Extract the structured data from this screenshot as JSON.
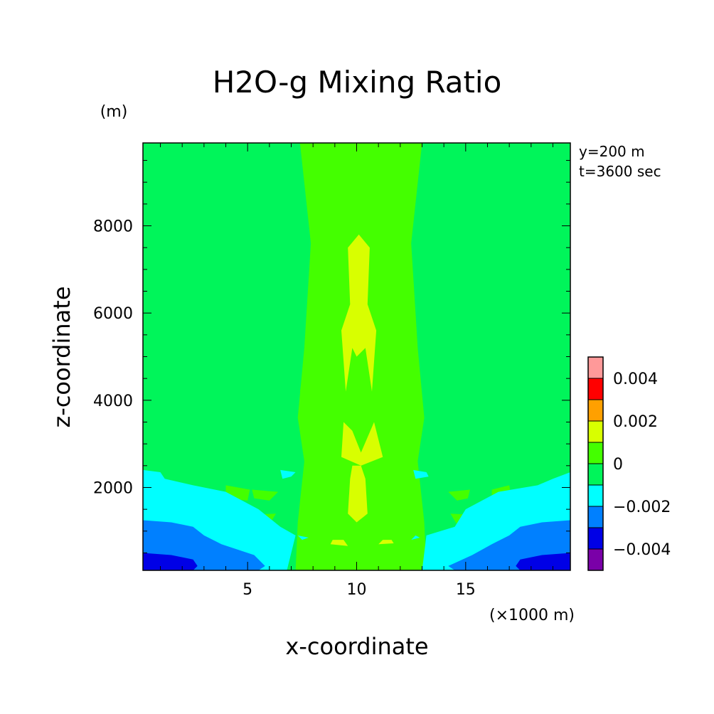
{
  "chart_data": {
    "type": "heatmap",
    "title": "H2O-g Mixing Ratio",
    "xlabel": "x-coordinate",
    "ylabel": "z-coordinate",
    "x_unit": "(×1000 m)",
    "y_unit": "(m)",
    "annotations": [
      "y=200 m",
      "t=3600 sec"
    ],
    "xlim": [
      0.2,
      19.8
    ],
    "ylim": [
      100,
      9900
    ],
    "x_ticks": [
      5,
      10,
      15
    ],
    "y_ticks": [
      2000,
      4000,
      6000,
      8000
    ],
    "colorbar": {
      "levels": [
        {
          "lo": -0.005,
          "hi": -0.004,
          "color": "#7a00a8"
        },
        {
          "lo": -0.004,
          "hi": -0.003,
          "color": "#0000e6"
        },
        {
          "lo": -0.003,
          "hi": -0.002,
          "color": "#0080ff"
        },
        {
          "lo": -0.002,
          "hi": -0.001,
          "color": "#00ffff"
        },
        {
          "lo": -0.001,
          "hi": 0.0,
          "color": "#00f55a"
        },
        {
          "lo": 0.0,
          "hi": 0.001,
          "color": "#44ff00"
        },
        {
          "lo": 0.001,
          "hi": 0.002,
          "color": "#d8ff00"
        },
        {
          "lo": 0.002,
          "hi": 0.003,
          "color": "#ffa000"
        },
        {
          "lo": 0.003,
          "hi": 0.004,
          "color": "#ff0000"
        },
        {
          "lo": 0.004,
          "hi": 0.005,
          "color": "#ff9999"
        }
      ],
      "tick_labels": [
        "0.004",
        "0.002",
        "0",
        "−0.002",
        "−0.004"
      ],
      "tick_values": [
        0.004,
        0.002,
        0.0,
        -0.002,
        -0.004
      ]
    },
    "regions": [
      {
        "level": 5,
        "points": [
          [
            7.2,
            100
          ],
          [
            7.3,
            1200
          ],
          [
            7.6,
            2600
          ],
          [
            7.3,
            3600
          ],
          [
            7.6,
            5200
          ],
          [
            7.9,
            7600
          ],
          [
            7.4,
            9900
          ],
          [
            13.0,
            9900
          ],
          [
            12.5,
            7600
          ],
          [
            12.8,
            5200
          ],
          [
            13.1,
            3600
          ],
          [
            12.8,
            2600
          ],
          [
            13.1,
            1200
          ],
          [
            13.2,
            100
          ]
        ]
      },
      {
        "level": 5,
        "points": [
          [
            4.0,
            2050
          ],
          [
            5.1,
            1950
          ],
          [
            5.0,
            1700
          ],
          [
            4.0,
            1750
          ]
        ]
      },
      {
        "level": 5,
        "points": [
          [
            16.2,
            1950
          ],
          [
            17.0,
            2050
          ],
          [
            17.1,
            1750
          ],
          [
            16.2,
            1700
          ]
        ]
      },
      {
        "level": 5,
        "points": [
          [
            4.0,
            1350
          ],
          [
            6.3,
            1400
          ],
          [
            6.0,
            1150
          ],
          [
            4.2,
            1100
          ]
        ]
      },
      {
        "level": 5,
        "points": [
          [
            14.3,
            1400
          ],
          [
            16.4,
            1350
          ],
          [
            16.6,
            1100
          ],
          [
            14.6,
            1150
          ]
        ]
      },
      {
        "level": 5,
        "points": [
          [
            5.2,
            1950
          ],
          [
            6.4,
            1900
          ],
          [
            6.0,
            1700
          ],
          [
            5.3,
            1750
          ]
        ]
      },
      {
        "level": 5,
        "points": [
          [
            14.2,
            1900
          ],
          [
            15.2,
            1950
          ],
          [
            15.1,
            1750
          ],
          [
            14.6,
            1700
          ]
        ]
      },
      {
        "level": 5,
        "points": [
          [
            7.4,
            4200
          ],
          [
            7.6,
            4800
          ],
          [
            7.8,
            4200
          ]
        ]
      },
      {
        "level": 5,
        "points": [
          [
            12.4,
            4200
          ],
          [
            12.7,
            4800
          ],
          [
            12.9,
            4200
          ]
        ]
      },
      {
        "level": 6,
        "points": [
          [
            9.7,
            2200
          ],
          [
            9.6,
            1400
          ],
          [
            10.0,
            1200
          ],
          [
            10.5,
            1400
          ],
          [
            10.4,
            2200
          ],
          [
            10.2,
            2500
          ],
          [
            9.8,
            2500
          ]
        ]
      },
      {
        "level": 6,
        "points": [
          [
            9.3,
            2700
          ],
          [
            9.4,
            3500
          ],
          [
            9.8,
            3300
          ],
          [
            10.2,
            2800
          ],
          [
            10.8,
            3500
          ],
          [
            11.2,
            2700
          ],
          [
            10.2,
            2500
          ]
        ]
      },
      {
        "level": 6,
        "points": [
          [
            9.5,
            4200
          ],
          [
            9.3,
            5600
          ],
          [
            9.7,
            6200
          ],
          [
            9.6,
            7500
          ],
          [
            10.1,
            7800
          ],
          [
            10.6,
            7500
          ],
          [
            10.5,
            6200
          ],
          [
            10.9,
            5600
          ],
          [
            10.7,
            4200
          ],
          [
            10.4,
            5200
          ],
          [
            10.0,
            5000
          ],
          [
            9.8,
            5200
          ]
        ]
      },
      {
        "level": 6,
        "points": [
          [
            8.8,
            700
          ],
          [
            9.6,
            660
          ],
          [
            9.4,
            800
          ],
          [
            8.9,
            800
          ]
        ]
      },
      {
        "level": 6,
        "points": [
          [
            11.0,
            700
          ],
          [
            11.7,
            720
          ],
          [
            11.6,
            800
          ],
          [
            11.2,
            800
          ]
        ]
      },
      {
        "level": 3,
        "points": [
          [
            0.2,
            2400
          ],
          [
            1.0,
            2350
          ],
          [
            1.2,
            2200
          ],
          [
            2.5,
            2050
          ],
          [
            4.0,
            1900
          ],
          [
            5.5,
            1500
          ],
          [
            6.5,
            1100
          ],
          [
            7.2,
            900
          ],
          [
            7.0,
            500
          ],
          [
            6.8,
            100
          ],
          [
            0.2,
            100
          ]
        ]
      },
      {
        "level": 3,
        "points": [
          [
            13.0,
            100
          ],
          [
            13.2,
            900
          ],
          [
            14.5,
            1100
          ],
          [
            15.0,
            1500
          ],
          [
            16.5,
            1900
          ],
          [
            18.3,
            2050
          ],
          [
            19.0,
            2200
          ],
          [
            19.8,
            2350
          ],
          [
            19.8,
            100
          ]
        ]
      },
      {
        "level": 3,
        "points": [
          [
            7.3,
            900
          ],
          [
            7.8,
            850
          ],
          [
            7.5,
            800
          ]
        ]
      },
      {
        "level": 3,
        "points": [
          [
            12.5,
            800
          ],
          [
            12.9,
            850
          ],
          [
            12.7,
            900
          ]
        ]
      },
      {
        "level": 2,
        "points": [
          [
            0.2,
            1250
          ],
          [
            1.5,
            1200
          ],
          [
            2.5,
            1100
          ],
          [
            3.0,
            900
          ],
          [
            3.8,
            700
          ],
          [
            5.3,
            450
          ],
          [
            5.8,
            200
          ],
          [
            5.5,
            100
          ],
          [
            0.2,
            100
          ]
        ]
      },
      {
        "level": 2,
        "points": [
          [
            14.5,
            100
          ],
          [
            14.2,
            200
          ],
          [
            15.3,
            450
          ],
          [
            16.2,
            700
          ],
          [
            17.0,
            900
          ],
          [
            17.5,
            1100
          ],
          [
            18.5,
            1200
          ],
          [
            19.8,
            1250
          ],
          [
            19.8,
            100
          ]
        ]
      },
      {
        "level": 1,
        "points": [
          [
            0.2,
            500
          ],
          [
            1.5,
            450
          ],
          [
            2.5,
            350
          ],
          [
            2.7,
            200
          ],
          [
            2.5,
            100
          ],
          [
            0.2,
            100
          ]
        ]
      },
      {
        "level": 1,
        "points": [
          [
            17.5,
            100
          ],
          [
            17.3,
            200
          ],
          [
            17.5,
            350
          ],
          [
            18.5,
            450
          ],
          [
            19.8,
            500
          ],
          [
            19.8,
            100
          ]
        ]
      },
      {
        "level": 3,
        "points": [
          [
            6.5,
            2400
          ],
          [
            7.2,
            2350
          ],
          [
            7.0,
            2250
          ],
          [
            6.6,
            2200
          ]
        ]
      },
      {
        "level": 3,
        "points": [
          [
            12.7,
            2200
          ],
          [
            13.3,
            2250
          ],
          [
            13.2,
            2350
          ],
          [
            12.6,
            2400
          ]
        ]
      }
    ]
  }
}
